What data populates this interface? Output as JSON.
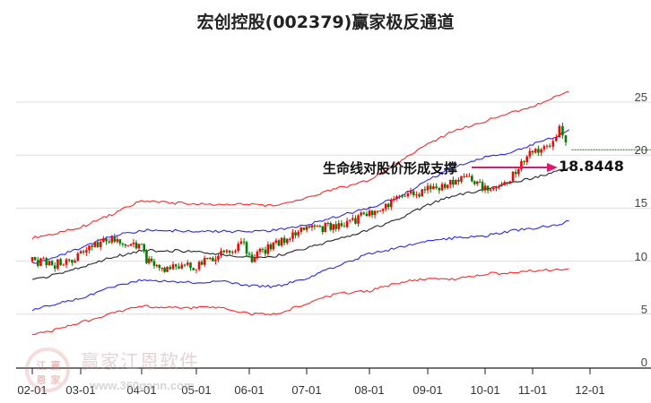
{
  "title": "宏创控股(002379)赢家极反通道",
  "annotation": {
    "label": "生命线对股价形成支撑",
    "value": "18.8448",
    "arrow_color": "#e0186c"
  },
  "watermark": {
    "brand": "赢家江恩软件",
    "url": "www.360gann.com",
    "logo_chars": [
      "江",
      "赢",
      "恩",
      "家"
    ]
  },
  "colors": {
    "up": "#ff0000",
    "down": "#008000",
    "outer_band": "#ff0000",
    "inner_band": "#0000ff",
    "life_line": "#000000",
    "last_price_line": "#008000",
    "grid": "#dddddd"
  },
  "chart_data": {
    "type": "candlestick",
    "title": "宏创控股(002379)赢家极反通道",
    "xlabel": "",
    "ylabel": "",
    "ylim": [
      0,
      27
    ],
    "y_ticks": [
      0,
      5,
      10,
      15,
      20,
      25
    ],
    "x_ticks": [
      "02-01",
      "03-01",
      "04-01",
      "05-01",
      "06-01",
      "07-01",
      "08-01",
      "09-01",
      "10-01",
      "11-01",
      "12-01"
    ],
    "grid": "horizontal",
    "legend": "none",
    "series": [
      {
        "name": "upper-red-band",
        "color": "#ff0000",
        "x": [
          "02-01",
          "02-15",
          "03-01",
          "03-15",
          "04-01",
          "04-15",
          "05-01",
          "05-15",
          "06-01",
          "06-15",
          "07-01",
          "07-15",
          "08-01",
          "08-15",
          "09-01",
          "09-15",
          "10-01",
          "10-15",
          "11-01",
          "11-15",
          "11-20"
        ],
        "values": [
          12.2,
          12.6,
          13.2,
          14.3,
          15.7,
          15.5,
          15.4,
          15.3,
          15.4,
          15.2,
          16.0,
          16.8,
          17.6,
          19.2,
          21.0,
          22.3,
          23.2,
          23.9,
          24.6,
          25.6,
          26.0
        ]
      },
      {
        "name": "upper-blue-band",
        "color": "#0000ff",
        "x": [
          "02-01",
          "02-15",
          "03-01",
          "03-15",
          "04-01",
          "04-15",
          "05-01",
          "05-15",
          "06-01",
          "06-15",
          "07-01",
          "07-15",
          "08-01",
          "08-15",
          "09-01",
          "09-15",
          "10-01",
          "10-15",
          "11-01",
          "11-15",
          "11-20"
        ],
        "values": [
          9.8,
          10.4,
          11.2,
          12.3,
          12.9,
          12.9,
          12.8,
          12.8,
          12.8,
          12.9,
          13.4,
          14.2,
          15.0,
          16.0,
          17.6,
          18.9,
          19.8,
          20.2,
          21.0,
          21.9,
          22.4
        ]
      },
      {
        "name": "life-line",
        "color": "#000000",
        "x": [
          "02-01",
          "02-15",
          "03-01",
          "03-15",
          "04-01",
          "04-15",
          "05-01",
          "05-15",
          "06-01",
          "06-15",
          "07-01",
          "07-15",
          "08-01",
          "08-15",
          "09-01",
          "09-15",
          "10-01",
          "10-15",
          "11-01",
          "11-15",
          "11-20"
        ],
        "values": [
          8.2,
          8.7,
          9.4,
          10.3,
          11.0,
          11.0,
          10.9,
          10.6,
          10.4,
          10.5,
          11.2,
          12.0,
          13.0,
          13.9,
          15.3,
          16.2,
          16.7,
          17.3,
          17.8,
          18.5,
          18.84
        ]
      },
      {
        "name": "lower-blue-band",
        "color": "#0000ff",
        "x": [
          "02-01",
          "02-15",
          "03-01",
          "03-15",
          "04-01",
          "04-15",
          "05-01",
          "05-15",
          "06-01",
          "06-15",
          "07-01",
          "07-15",
          "08-01",
          "08-15",
          "09-01",
          "09-15",
          "10-01",
          "10-15",
          "11-01",
          "11-15",
          "11-20"
        ],
        "values": [
          5.4,
          5.9,
          6.5,
          7.5,
          8.2,
          8.1,
          8.0,
          8.1,
          7.7,
          7.6,
          8.4,
          9.5,
          10.7,
          11.2,
          11.9,
          12.2,
          12.4,
          12.8,
          13.1,
          13.5,
          13.8
        ]
      },
      {
        "name": "lower-red-band",
        "color": "#ff0000",
        "x": [
          "02-01",
          "02-15",
          "03-01",
          "03-15",
          "04-01",
          "04-15",
          "05-01",
          "05-15",
          "06-01",
          "06-15",
          "07-01",
          "07-15",
          "08-01",
          "08-15",
          "09-01",
          "09-15",
          "10-01",
          "10-15",
          "11-01",
          "11-15",
          "11-20"
        ],
        "values": [
          3.0,
          3.5,
          4.2,
          5.0,
          5.8,
          5.6,
          5.6,
          5.7,
          5.0,
          5.0,
          6.0,
          6.9,
          7.2,
          7.9,
          8.4,
          8.3,
          8.8,
          8.9,
          9.1,
          9.2,
          9.3
        ]
      },
      {
        "name": "close-price",
        "color": "#333333",
        "x": [
          "02-01",
          "02-15",
          "03-01",
          "03-15",
          "04-01",
          "04-05",
          "04-15",
          "05-01",
          "05-15",
          "05-28",
          "06-01",
          "06-15",
          "07-01",
          "07-15",
          "08-01",
          "08-15",
          "09-01",
          "09-10",
          "09-20",
          "10-01",
          "10-15",
          "11-01",
          "11-10",
          "11-15",
          "11-20"
        ],
        "values": [
          10.0,
          9.7,
          10.6,
          12.2,
          11.2,
          9.8,
          9.2,
          9.6,
          10.8,
          11.7,
          10.2,
          11.6,
          13.1,
          13.2,
          14.5,
          16.0,
          16.7,
          17.2,
          17.8,
          17.0,
          17.6,
          20.4,
          20.6,
          22.6,
          20.5
        ]
      }
    ],
    "last_price_line": 20.5,
    "support_annotation": {
      "text": "生命线对股价形成支撑",
      "value": 18.8448
    }
  }
}
